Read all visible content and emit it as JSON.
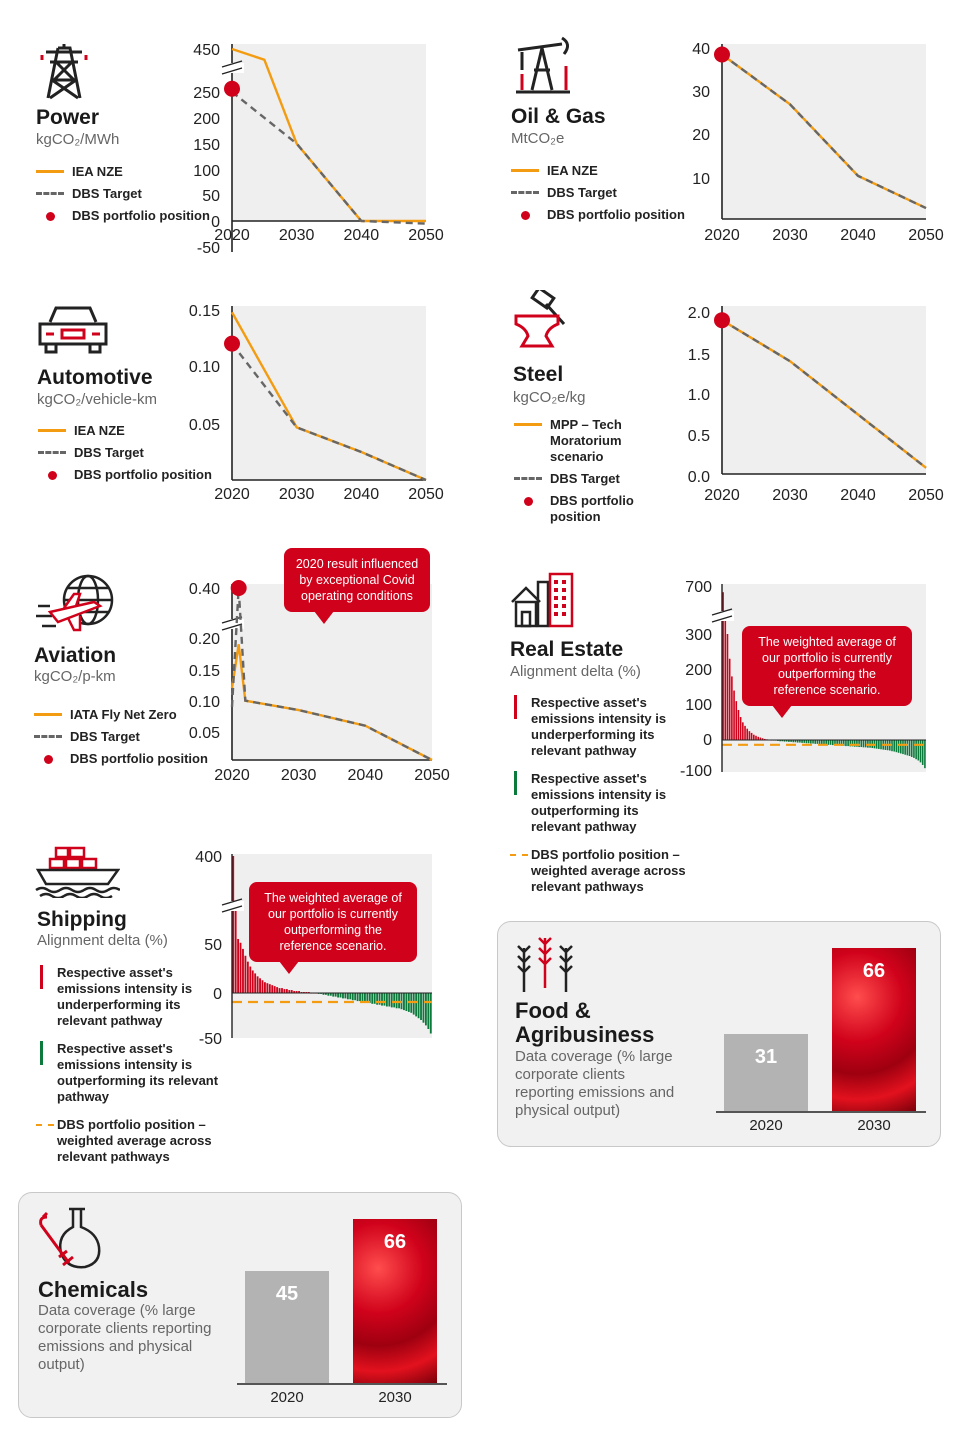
{
  "legend_labels": {
    "iea_nze": "IEA NZE",
    "dbs_target": "DBS Target",
    "dbs_position": "DBS portfolio position",
    "mpp": "MPP – Tech Moratorium scenario",
    "iata": "IATA Fly Net Zero",
    "under": "Respective asset's emissions intensity is underperforming its relevant pathway",
    "out": "Respective asset's emissions intensity is outperforming its relevant pathway",
    "dbs_weighted": "DBS portfolio position – weighted average across relevant pathways"
  },
  "power": {
    "title": "Power",
    "unit": "kgCO₂/MWh"
  },
  "oilgas": {
    "title": "Oil & Gas",
    "unit": "MtCO₂e"
  },
  "auto": {
    "title": "Automotive",
    "unit": "kgCO₂/vehicle-km"
  },
  "steel": {
    "title": "Steel",
    "unit": "kgCO₂e/kg"
  },
  "aviation": {
    "title": "Aviation",
    "unit": "kgCO₂/p-km",
    "callout": "2020 result influenced by exceptional Covid operating conditions"
  },
  "realestate": {
    "title": "Real Estate",
    "unit": "Alignment delta (%)",
    "callout": "The weighted average of our portfolio is currently outperforming the reference scenario."
  },
  "shipping": {
    "title": "Shipping",
    "unit": "Alignment delta (%)",
    "callout": "The weighted average of our portfolio is currently outperforming the reference scenario."
  },
  "food": {
    "title_line1": "Food &",
    "title_line2": "Agribusiness",
    "desc": "Data coverage (% large corporate clients reporting emissions and physical output)"
  },
  "chemicals": {
    "title": "Chemicals",
    "desc": "Data coverage (% large corporate clients reporting emissions and physical output)"
  },
  "colors": {
    "red": "#d0021b",
    "orange": "#f39c12",
    "green": "#0b7a3b",
    "grey": "#666666",
    "bar_grey": "#b3b3b3"
  },
  "chart_data": [
    {
      "id": "power",
      "type": "line",
      "ylim": [
        -50,
        450
      ],
      "y_ticks": [
        "450",
        "250",
        "200",
        "150",
        "100",
        "50",
        "0",
        "-50"
      ],
      "x_ticks": [
        "2020",
        "2030",
        "2040",
        "2050"
      ],
      "series": [
        {
          "name": "IEA NZE",
          "x": [
            2020,
            2025,
            2030,
            2040,
            2050
          ],
          "y": [
            450,
            400,
            150,
            0,
            0
          ]
        },
        {
          "name": "DBS Target",
          "x": [
            2020,
            2030,
            2040,
            2050
          ],
          "y": [
            250,
            150,
            0,
            -5
          ]
        }
      ],
      "point": {
        "name": "DBS portfolio position",
        "x": 2020,
        "y": 265
      }
    },
    {
      "id": "oilgas",
      "type": "line",
      "ylim": [
        0,
        40
      ],
      "y_ticks": [
        "40",
        "30",
        "20",
        "10"
      ],
      "x_ticks": [
        "2020",
        "2030",
        "2040",
        "2050"
      ],
      "series": [
        {
          "name": "IEA NZE",
          "x": [
            2020,
            2030,
            2040,
            2050
          ],
          "y": [
            38.5,
            27,
            10.5,
            3
          ]
        },
        {
          "name": "DBS Target",
          "x": [
            2020,
            2030,
            2040,
            2050
          ],
          "y": [
            38.5,
            27,
            10.5,
            3
          ]
        }
      ],
      "point": {
        "name": "DBS portfolio position",
        "x": 2020,
        "y": 38.5
      }
    },
    {
      "id": "auto",
      "type": "line",
      "ylim": [
        0,
        0.15
      ],
      "y_ticks": [
        "0.15",
        "0.10",
        "0.05"
      ],
      "x_ticks": [
        "2020",
        "2030",
        "2040",
        "2050"
      ],
      "series": [
        {
          "name": "IEA NZE",
          "x": [
            2020,
            2030,
            2040,
            2050
          ],
          "y": [
            0.148,
            0.047,
            0.025,
            0
          ]
        },
        {
          "name": "DBS Target",
          "x": [
            2020,
            2030,
            2040,
            2050
          ],
          "y": [
            0.12,
            0.047,
            0.025,
            0
          ]
        }
      ],
      "point": {
        "name": "DBS portfolio position",
        "x": 2020,
        "y": 0.12
      }
    },
    {
      "id": "steel",
      "type": "line",
      "ylim": [
        0,
        2.0
      ],
      "y_ticks": [
        "2.0",
        "1.5",
        "1.0",
        "0.5",
        "0.0"
      ],
      "x_ticks": [
        "2020",
        "2030",
        "2040",
        "2050"
      ],
      "series": [
        {
          "name": "MPP – Tech Moratorium scenario",
          "x": [
            2020,
            2030,
            2040,
            2050
          ],
          "y": [
            1.9,
            1.4,
            0.75,
            0.1
          ]
        },
        {
          "name": "DBS Target",
          "x": [
            2020,
            2030,
            2040,
            2050
          ],
          "y": [
            1.9,
            1.4,
            0.75,
            0.1
          ]
        }
      ],
      "point": {
        "name": "DBS portfolio position",
        "x": 2020,
        "y": 1.9
      }
    },
    {
      "id": "aviation",
      "type": "line",
      "ylim": [
        0,
        0.4
      ],
      "y_ticks": [
        "0.40",
        "0.20",
        "0.15",
        "0.10",
        "0.05"
      ],
      "x_ticks": [
        "2020",
        "2030",
        "2040",
        "2050"
      ],
      "series": [
        {
          "name": "IATA Fly Net Zero",
          "x": [
            2020,
            2021,
            2022,
            2030,
            2040,
            2050
          ],
          "y": [
            0.12,
            0.19,
            0.1,
            0.085,
            0.06,
            0
          ]
        },
        {
          "name": "DBS Target",
          "x": [
            2020,
            2021,
            2022,
            2030,
            2040,
            2050
          ],
          "y": [
            0.09,
            0.4,
            0.1,
            0.085,
            0.06,
            0
          ]
        }
      ],
      "point": {
        "name": "DBS portfolio position",
        "x": 2021,
        "y": 0.4
      }
    },
    {
      "id": "realestate",
      "type": "bar",
      "ylim": [
        -100,
        700
      ],
      "y_ticks": [
        "700",
        "300",
        "200",
        "100",
        "0",
        "-100"
      ],
      "values": [
        680,
        420,
        300,
        230,
        180,
        140,
        110,
        85,
        65,
        50,
        40,
        32,
        25,
        20,
        15,
        12,
        9,
        7,
        5,
        3,
        2,
        1,
        0,
        -1,
        -2,
        -3,
        -4,
        -4,
        -5,
        -5,
        -6,
        -6,
        -7,
        -7,
        -8,
        -8,
        -9,
        -9,
        -10,
        -10,
        -11,
        -11,
        -12,
        -12,
        -13,
        -13,
        -14,
        -14,
        -15,
        -15,
        -16,
        -16,
        -17,
        -17,
        -18,
        -18,
        -19,
        -19,
        -20,
        -20,
        -21,
        -21,
        -22,
        -22,
        -23,
        -23,
        -24,
        -24,
        -25,
        -26,
        -27,
        -28,
        -29,
        -30,
        -31,
        -32,
        -33,
        -35,
        -36,
        -38,
        -40,
        -42,
        -44,
        -46,
        -48,
        -50,
        -53,
        -56,
        -60,
        -64,
        -70,
        -78,
        -88
      ],
      "weighted_average": -15
    },
    {
      "id": "shipping",
      "type": "bar",
      "ylim": [
        -50,
        400
      ],
      "y_ticks": [
        "400",
        "50",
        "0",
        "-50"
      ],
      "values": [
        400,
        200,
        70,
        55,
        45,
        38,
        32,
        27,
        23,
        20,
        17,
        15,
        13,
        11,
        10,
        9,
        8,
        7,
        6,
        5,
        5,
        4,
        4,
        3,
        3,
        2,
        2,
        2,
        1,
        1,
        1,
        1,
        0,
        0,
        0,
        -1,
        -1,
        -2,
        -2,
        -3,
        -3,
        -4,
        -4,
        -5,
        -5,
        -6,
        -6,
        -7,
        -7,
        -8,
        -8,
        -9,
        -9,
        -10,
        -10,
        -11,
        -11,
        -12,
        -12,
        -13,
        -13,
        -14,
        -14,
        -15,
        -15,
        -16,
        -16,
        -17,
        -17,
        -18,
        -19,
        -20,
        -21,
        -22,
        -24,
        -26,
        -28,
        -30,
        -33,
        -36,
        -40,
        -45
      ],
      "weighted_average": -10
    },
    {
      "id": "food",
      "type": "bar",
      "categories": [
        "2020",
        "2030"
      ],
      "values": [
        31,
        66
      ],
      "value_labels": [
        "31",
        "66"
      ]
    },
    {
      "id": "chemicals",
      "type": "bar",
      "categories": [
        "2020",
        "2030"
      ],
      "values": [
        45,
        66
      ],
      "value_labels": [
        "45",
        "66"
      ]
    }
  ]
}
